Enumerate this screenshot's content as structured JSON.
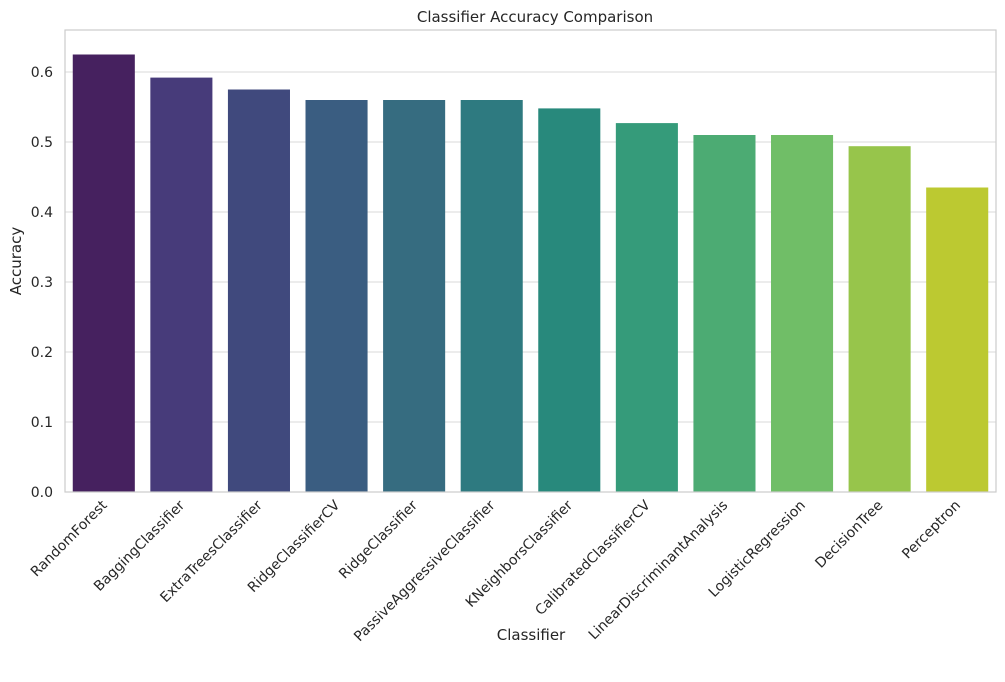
{
  "chart_data": {
    "type": "bar",
    "title": "Classifier Accuracy Comparison",
    "xlabel": "Classifier",
    "ylabel": "Accuracy",
    "ylim": [
      0,
      0.66
    ],
    "yticks": [
      0.0,
      0.1,
      0.2,
      0.3,
      0.4,
      0.5,
      0.6
    ],
    "ytick_labels": [
      "0.0",
      "0.1",
      "0.2",
      "0.3",
      "0.4",
      "0.5",
      "0.6"
    ],
    "grid": "horizontal",
    "categories": [
      "RandomForest",
      "BaggingClassifier",
      "ExtraTreesClassifier",
      "RidgeClassifierCV",
      "RidgeClassifier",
      "PassiveAggressiveClassifier",
      "KNeighborsClassifier",
      "CalibratedClassifierCV",
      "LinearDiscriminantAnalysis",
      "LogisticRegression",
      "DecisionTree",
      "Perceptron"
    ],
    "values": [
      0.625,
      0.592,
      0.575,
      0.56,
      0.56,
      0.56,
      0.548,
      0.527,
      0.51,
      0.51,
      0.494,
      0.435
    ],
    "colors": [
      "#46215f",
      "#473b7a",
      "#40497d",
      "#3a5d81",
      "#366c80",
      "#2e7a80",
      "#28897c",
      "#359b7a",
      "#4cab73",
      "#70be67",
      "#97c54b",
      "#bcc931"
    ]
  }
}
